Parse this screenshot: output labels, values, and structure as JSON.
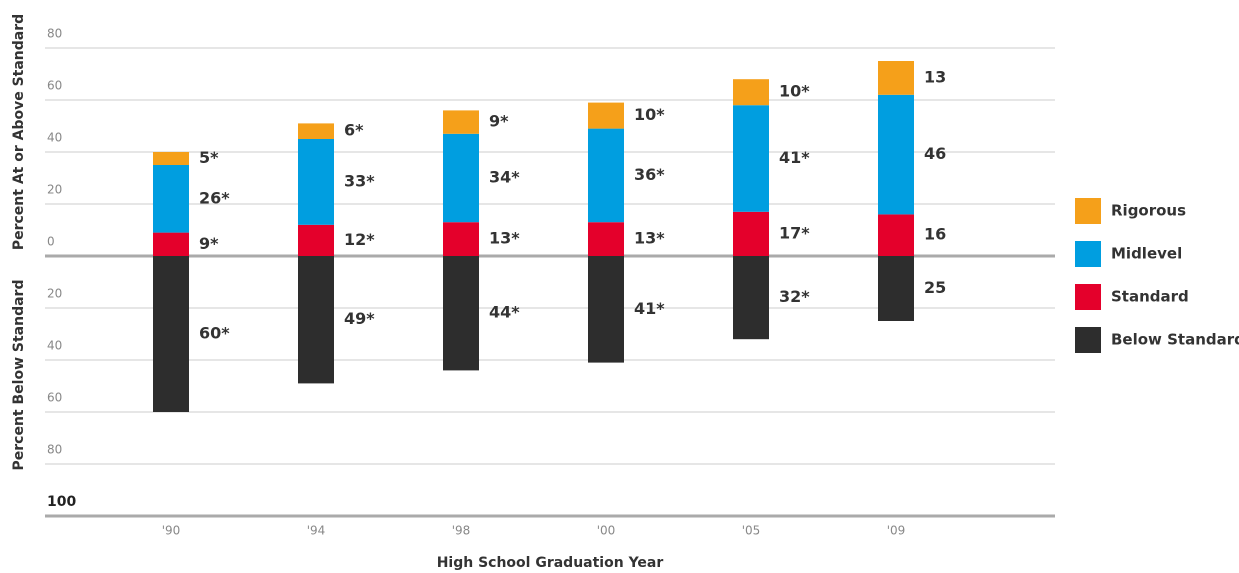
{
  "chart_data": {
    "type": "bar",
    "stacked": true,
    "xlabel": "High School Graduation Year",
    "ylabel": "Percent At or Above Standard",
    "ylabel_below": "Percent Below Standard",
    "categories": [
      "'90",
      "'94",
      "'98",
      "'00",
      "'05",
      "'09"
    ],
    "series": [
      {
        "name": "Below Standard",
        "color": "#2d2d2d",
        "values": [
          -60,
          -49,
          -44,
          -41,
          -32,
          -25
        ],
        "value_labels": [
          "60*",
          "49*",
          "44*",
          "41*",
          "32*",
          "25"
        ]
      },
      {
        "name": "Standard",
        "color": "#e4002b",
        "values": [
          9,
          12,
          13,
          13,
          17,
          16
        ],
        "value_labels": [
          "9*",
          "12*",
          "13*",
          "13*",
          "17*",
          "16"
        ]
      },
      {
        "name": "Midlevel",
        "color": "#009ee0",
        "values": [
          26,
          33,
          34,
          36,
          41,
          46
        ],
        "value_labels": [
          "26*",
          "33*",
          "34*",
          "36*",
          "41*",
          "46"
        ]
      },
      {
        "name": "Rigorous",
        "color": "#f5a01a",
        "values": [
          5,
          6,
          9,
          10,
          10,
          13
        ],
        "value_labels": [
          "5*",
          "6*",
          "9*",
          "10*",
          "10*",
          "13"
        ]
      }
    ],
    "ylim": [
      -100,
      80
    ],
    "yticks": [
      80,
      60,
      40,
      20,
      0,
      {
        "value": -20,
        "label": "20"
      },
      {
        "value": -40,
        "label": "40"
      },
      {
        "value": -60,
        "label": "60"
      },
      {
        "value": -80,
        "label": "80"
      },
      {
        "value": -100,
        "label": "100"
      }
    ],
    "grid": true,
    "legend": "right"
  }
}
